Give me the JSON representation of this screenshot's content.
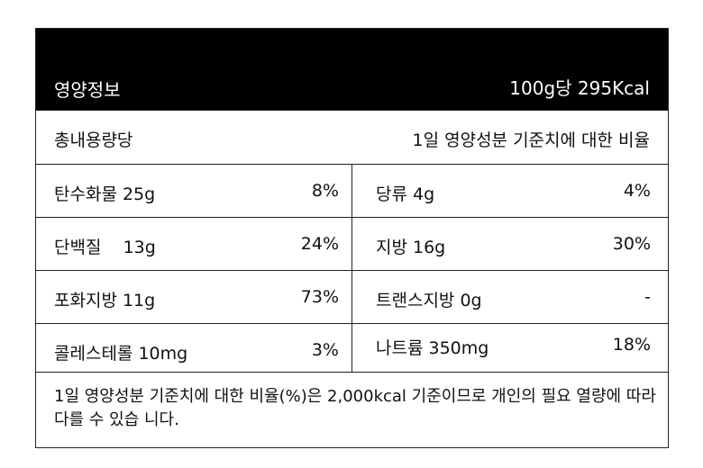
{
  "header": {
    "title": "영양정보",
    "serving": "100g당 295Kcal"
  },
  "subheader": {
    "left": "총내용량당",
    "right": "1일 영양성분 기준치에 대한 비율"
  },
  "rows": [
    {
      "left": {
        "name": "탄수화물 25g",
        "pct": "8%"
      },
      "right": {
        "name": "당류 4g",
        "pct": "4%"
      }
    },
    {
      "left": {
        "name": "단백질    13g",
        "pct": "24%"
      },
      "right": {
        "name": "지방 16g",
        "pct": "30%"
      }
    },
    {
      "left": {
        "name": "포화지방 11g",
        "pct": "73%"
      },
      "right": {
        "name": "트랜스지방 0g",
        "pct": "-"
      }
    },
    {
      "left": {
        "name": "콜레스테롤 10mg",
        "pct": "3%"
      },
      "right": {
        "name": "나트륨 350mg",
        "pct": "18%"
      }
    }
  ],
  "footnote": "1일 영양성분 기준치에 대한 비율(%)은 2,000kcal 기준이므로 개인의 필요 열량에 따라 다를 수 있습 니다."
}
